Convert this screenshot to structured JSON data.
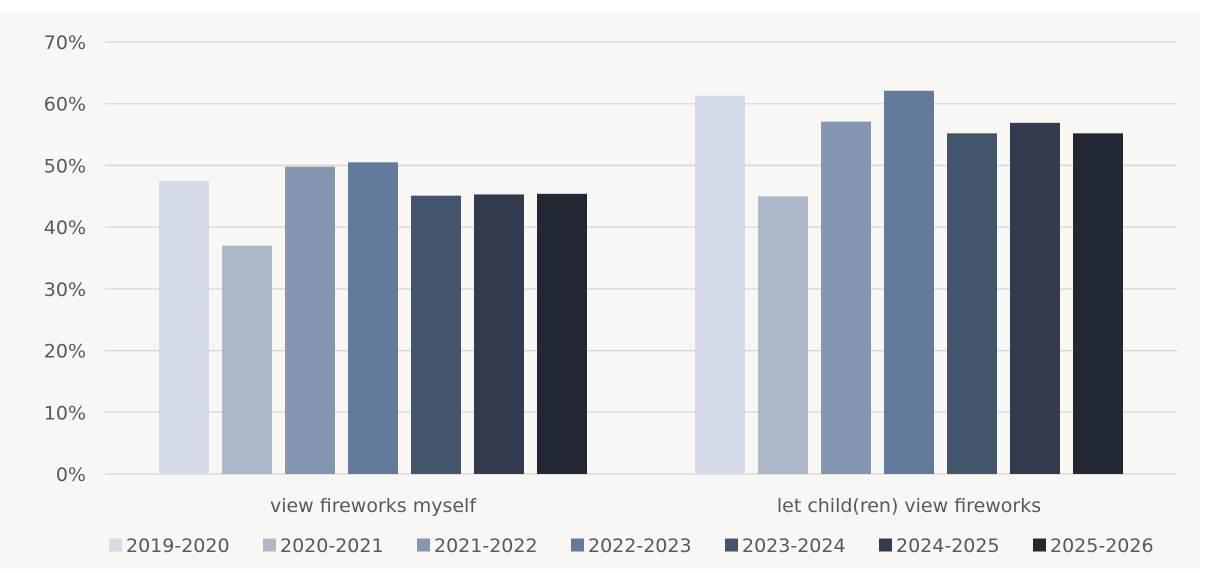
{
  "chart_data": {
    "type": "bar",
    "title": "",
    "xlabel": "",
    "ylabel": "",
    "ylim": [
      0,
      70
    ],
    "y_ticks": [
      "0%",
      "10%",
      "20%",
      "30%",
      "40%",
      "50%",
      "60%",
      "70%"
    ],
    "grid": true,
    "legend_position": "bottom",
    "categories": [
      "view fireworks myself",
      "let child(ren) view fireworks"
    ],
    "series": [
      {
        "name": "2019-2020",
        "color": "#d6dce7",
        "values": [
          47.5,
          61.3
        ]
      },
      {
        "name": "2020-2021",
        "color": "#adb8cb",
        "values": [
          37.0,
          45.0
        ]
      },
      {
        "name": "2021-2022",
        "color": "#8596b0",
        "values": [
          49.8,
          57.1
        ]
      },
      {
        "name": "2022-2023",
        "color": "#627a9b",
        "values": [
          50.5,
          62.1
        ]
      },
      {
        "name": "2023-2024",
        "color": "#43546d",
        "values": [
          45.1,
          55.2
        ]
      },
      {
        "name": "2024-2025",
        "color": "#333c4e",
        "values": [
          45.3,
          56.9
        ]
      },
      {
        "name": "2025-2026",
        "color": "#232934",
        "values": [
          45.4,
          55.2
        ]
      }
    ],
    "background_color": "#f8f7f3",
    "grid_color": "#d6d6d4",
    "text_color": "#595959"
  }
}
